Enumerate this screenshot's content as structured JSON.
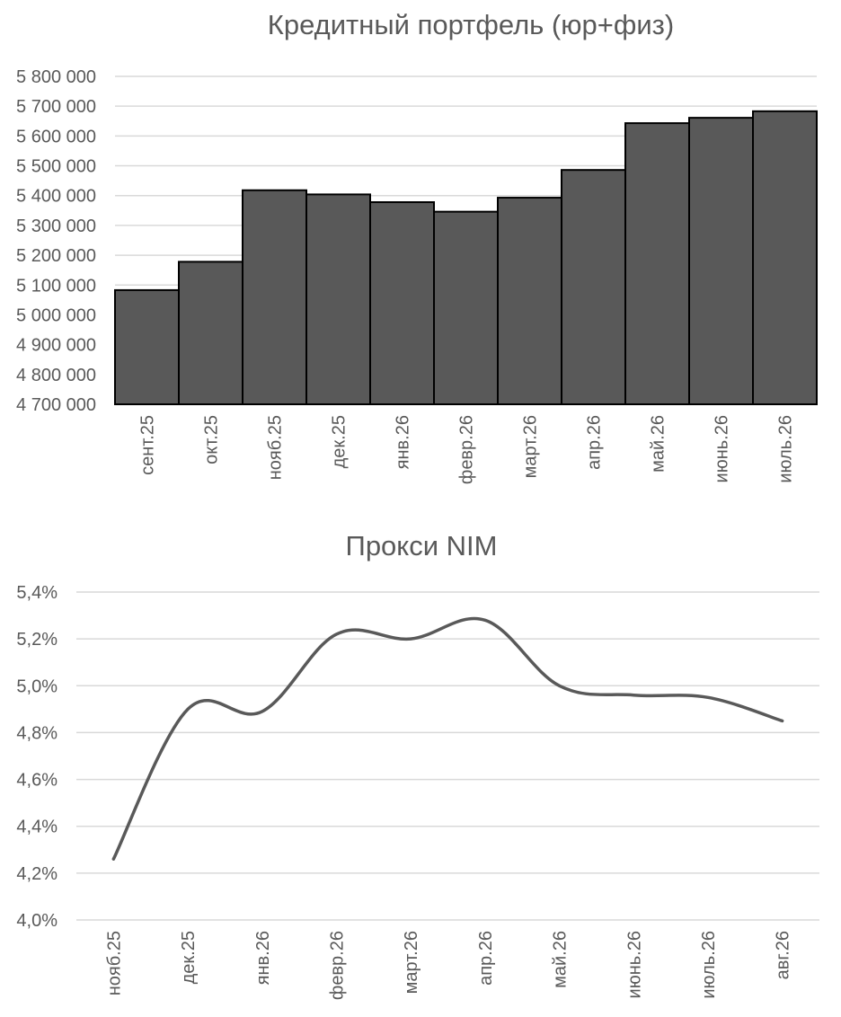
{
  "chart_data": [
    {
      "type": "bar",
      "title": "Кредитный портфель (юр+физ)",
      "categories": [
        "сент.25",
        "окт.25",
        "нояб.25",
        "дек.25",
        "янв.26",
        "февр.26",
        "март.26",
        "апр.26",
        "май.26",
        "июнь.26",
        "июль.26"
      ],
      "values": [
        5083000,
        5178000,
        5418000,
        5404000,
        5378000,
        5346000,
        5393000,
        5486000,
        5643000,
        5661000,
        5683000
      ],
      "ylim": [
        4700000,
        5800000
      ],
      "yticks": [
        4700000,
        4800000,
        4900000,
        5000000,
        5100000,
        5200000,
        5300000,
        5400000,
        5500000,
        5600000,
        5700000,
        5800000
      ],
      "ytick_labels": [
        "4 700 000",
        "4 800 000",
        "4 900 000",
        "5 000 000",
        "5 100 000",
        "5 200 000",
        "5 300 000",
        "5 400 000",
        "5 500 000",
        "5 600 000",
        "5 700 000",
        "5 800 000"
      ],
      "xlabel": "",
      "ylabel": "",
      "grid": true,
      "legend": "none",
      "bar_color": "#595959",
      "bar_edge_color": "#000000",
      "gridline_color": "#d9d9d9",
      "text_color": "#595959"
    },
    {
      "type": "line",
      "title": "Прокси NIM",
      "categories": [
        "нояб.25",
        "дек.25",
        "янв.26",
        "февр.26",
        "март.26",
        "апр.26",
        "май.26",
        "июнь.26",
        "июль.26",
        "авг.26"
      ],
      "values": [
        4.26,
        4.9,
        4.89,
        5.22,
        5.2,
        5.28,
        5.0,
        4.96,
        4.95,
        4.85
      ],
      "unit": "%",
      "ylim": [
        4.0,
        5.4
      ],
      "yticks": [
        4.0,
        4.2,
        4.4,
        4.6,
        4.8,
        5.0,
        5.2,
        5.4
      ],
      "ytick_labels": [
        "4,0%",
        "4,2%",
        "4,4%",
        "4,6%",
        "4,8%",
        "5,0%",
        "5,2%",
        "5,4%"
      ],
      "smooth": true,
      "xlabel": "",
      "ylabel": "",
      "grid": true,
      "legend": "none",
      "line_color": "#595959",
      "gridline_color": "#d9d9d9",
      "text_color": "#595959"
    }
  ]
}
